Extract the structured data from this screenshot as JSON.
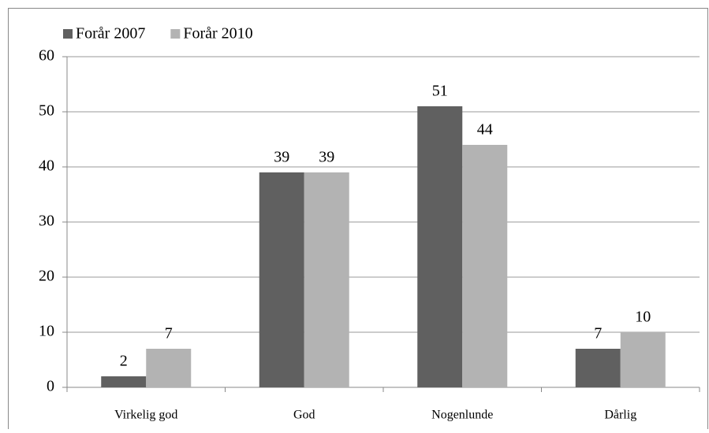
{
  "chart_data": {
    "type": "bar",
    "categories": [
      "Virkelig god",
      "God",
      "Nogenlunde",
      "Dårlig"
    ],
    "series": [
      {
        "name": "Forår 2007",
        "color": "#606060",
        "values": [
          2,
          39,
          51,
          7
        ]
      },
      {
        "name": "Forår 2010",
        "color": "#b3b3b3",
        "values": [
          7,
          39,
          44,
          10
        ]
      }
    ],
    "ylim": [
      0,
      60
    ],
    "yticks": [
      0,
      10,
      20,
      30,
      40,
      50,
      60
    ],
    "grid": true,
    "legend": "top-left"
  }
}
